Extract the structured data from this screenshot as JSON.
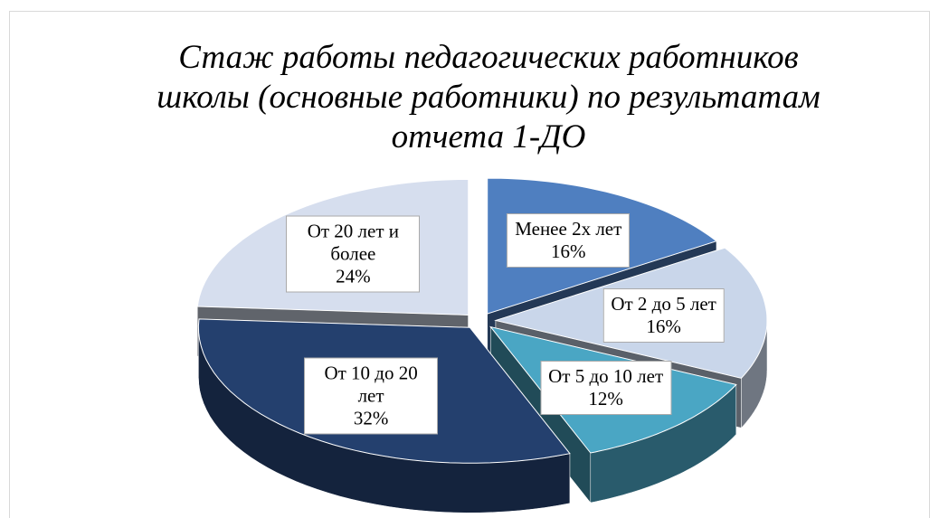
{
  "chart_data": {
    "type": "pie",
    "title": "Стаж работы педагогических работников школы (основные работники) по результатам отчета 1-ДО",
    "categories": [
      "Менее 2х лет",
      "От 2 до 5 лет",
      "От 5 до 10 лет",
      "От 10 до 20 лет",
      "От 20 лет и более"
    ],
    "values": [
      16,
      16,
      12,
      32,
      24
    ],
    "value_labels": [
      "16%",
      "16%",
      "12%",
      "32%",
      "24%"
    ],
    "colors": [
      "#4f7fc0",
      "#c9d6ea",
      "#4aa6c4",
      "#24406e",
      "#d6deee"
    ]
  }
}
